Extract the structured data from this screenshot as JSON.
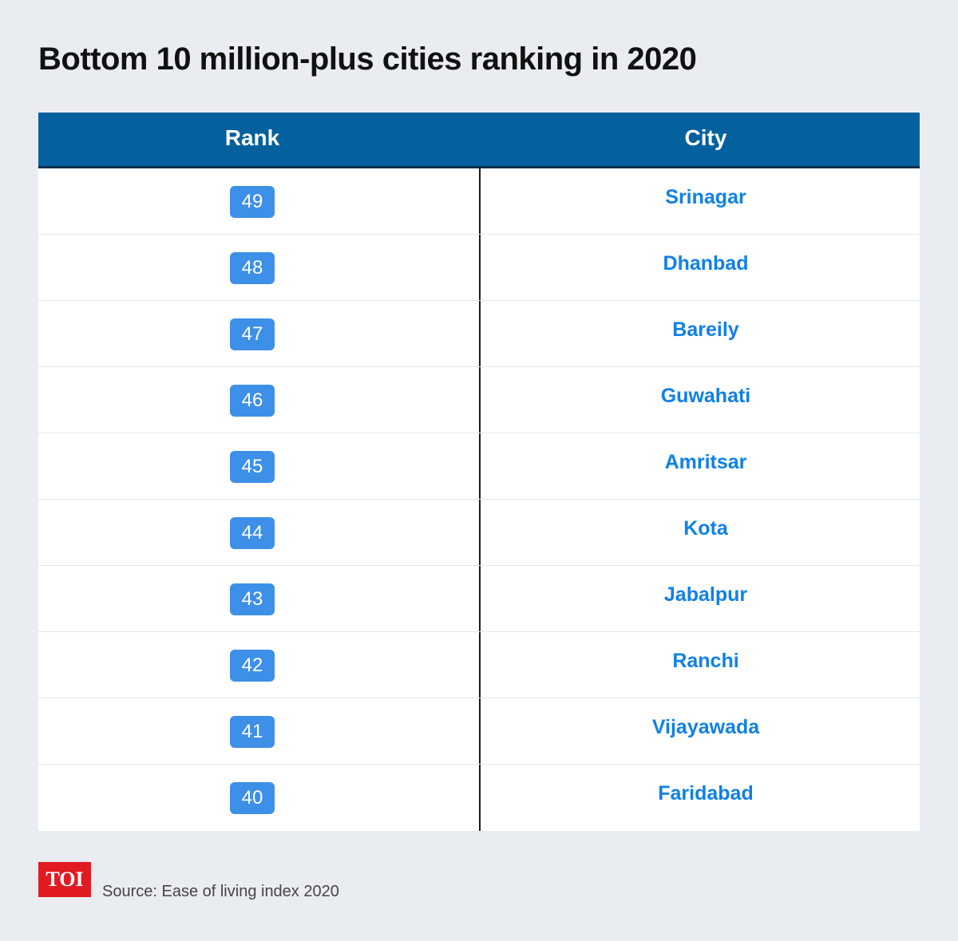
{
  "title": "Bottom 10 million-plus cities ranking in 2020",
  "chart_data": {
    "type": "table",
    "title": "Bottom 10 million-plus cities ranking in 2020",
    "columns": [
      "Rank",
      "City"
    ],
    "rows": [
      {
        "rank": "49",
        "city": "Srinagar"
      },
      {
        "rank": "48",
        "city": "Dhanbad"
      },
      {
        "rank": "47",
        "city": "Bareily"
      },
      {
        "rank": "46",
        "city": "Guwahati"
      },
      {
        "rank": "45",
        "city": "Amritsar"
      },
      {
        "rank": "44",
        "city": "Kota"
      },
      {
        "rank": "43",
        "city": "Jabalpur"
      },
      {
        "rank": "42",
        "city": "Ranchi"
      },
      {
        "rank": "41",
        "city": "Vijayawada"
      },
      {
        "rank": "40",
        "city": "Faridabad"
      }
    ]
  },
  "footer": {
    "logo_text": "TOI",
    "source": "Source: Ease of living index 2020"
  },
  "colors": {
    "background": "#e9edf2",
    "header": "#05609e",
    "badge": "#3d8fe8",
    "city_text": "#0f80e8",
    "logo": "#e21b22"
  }
}
